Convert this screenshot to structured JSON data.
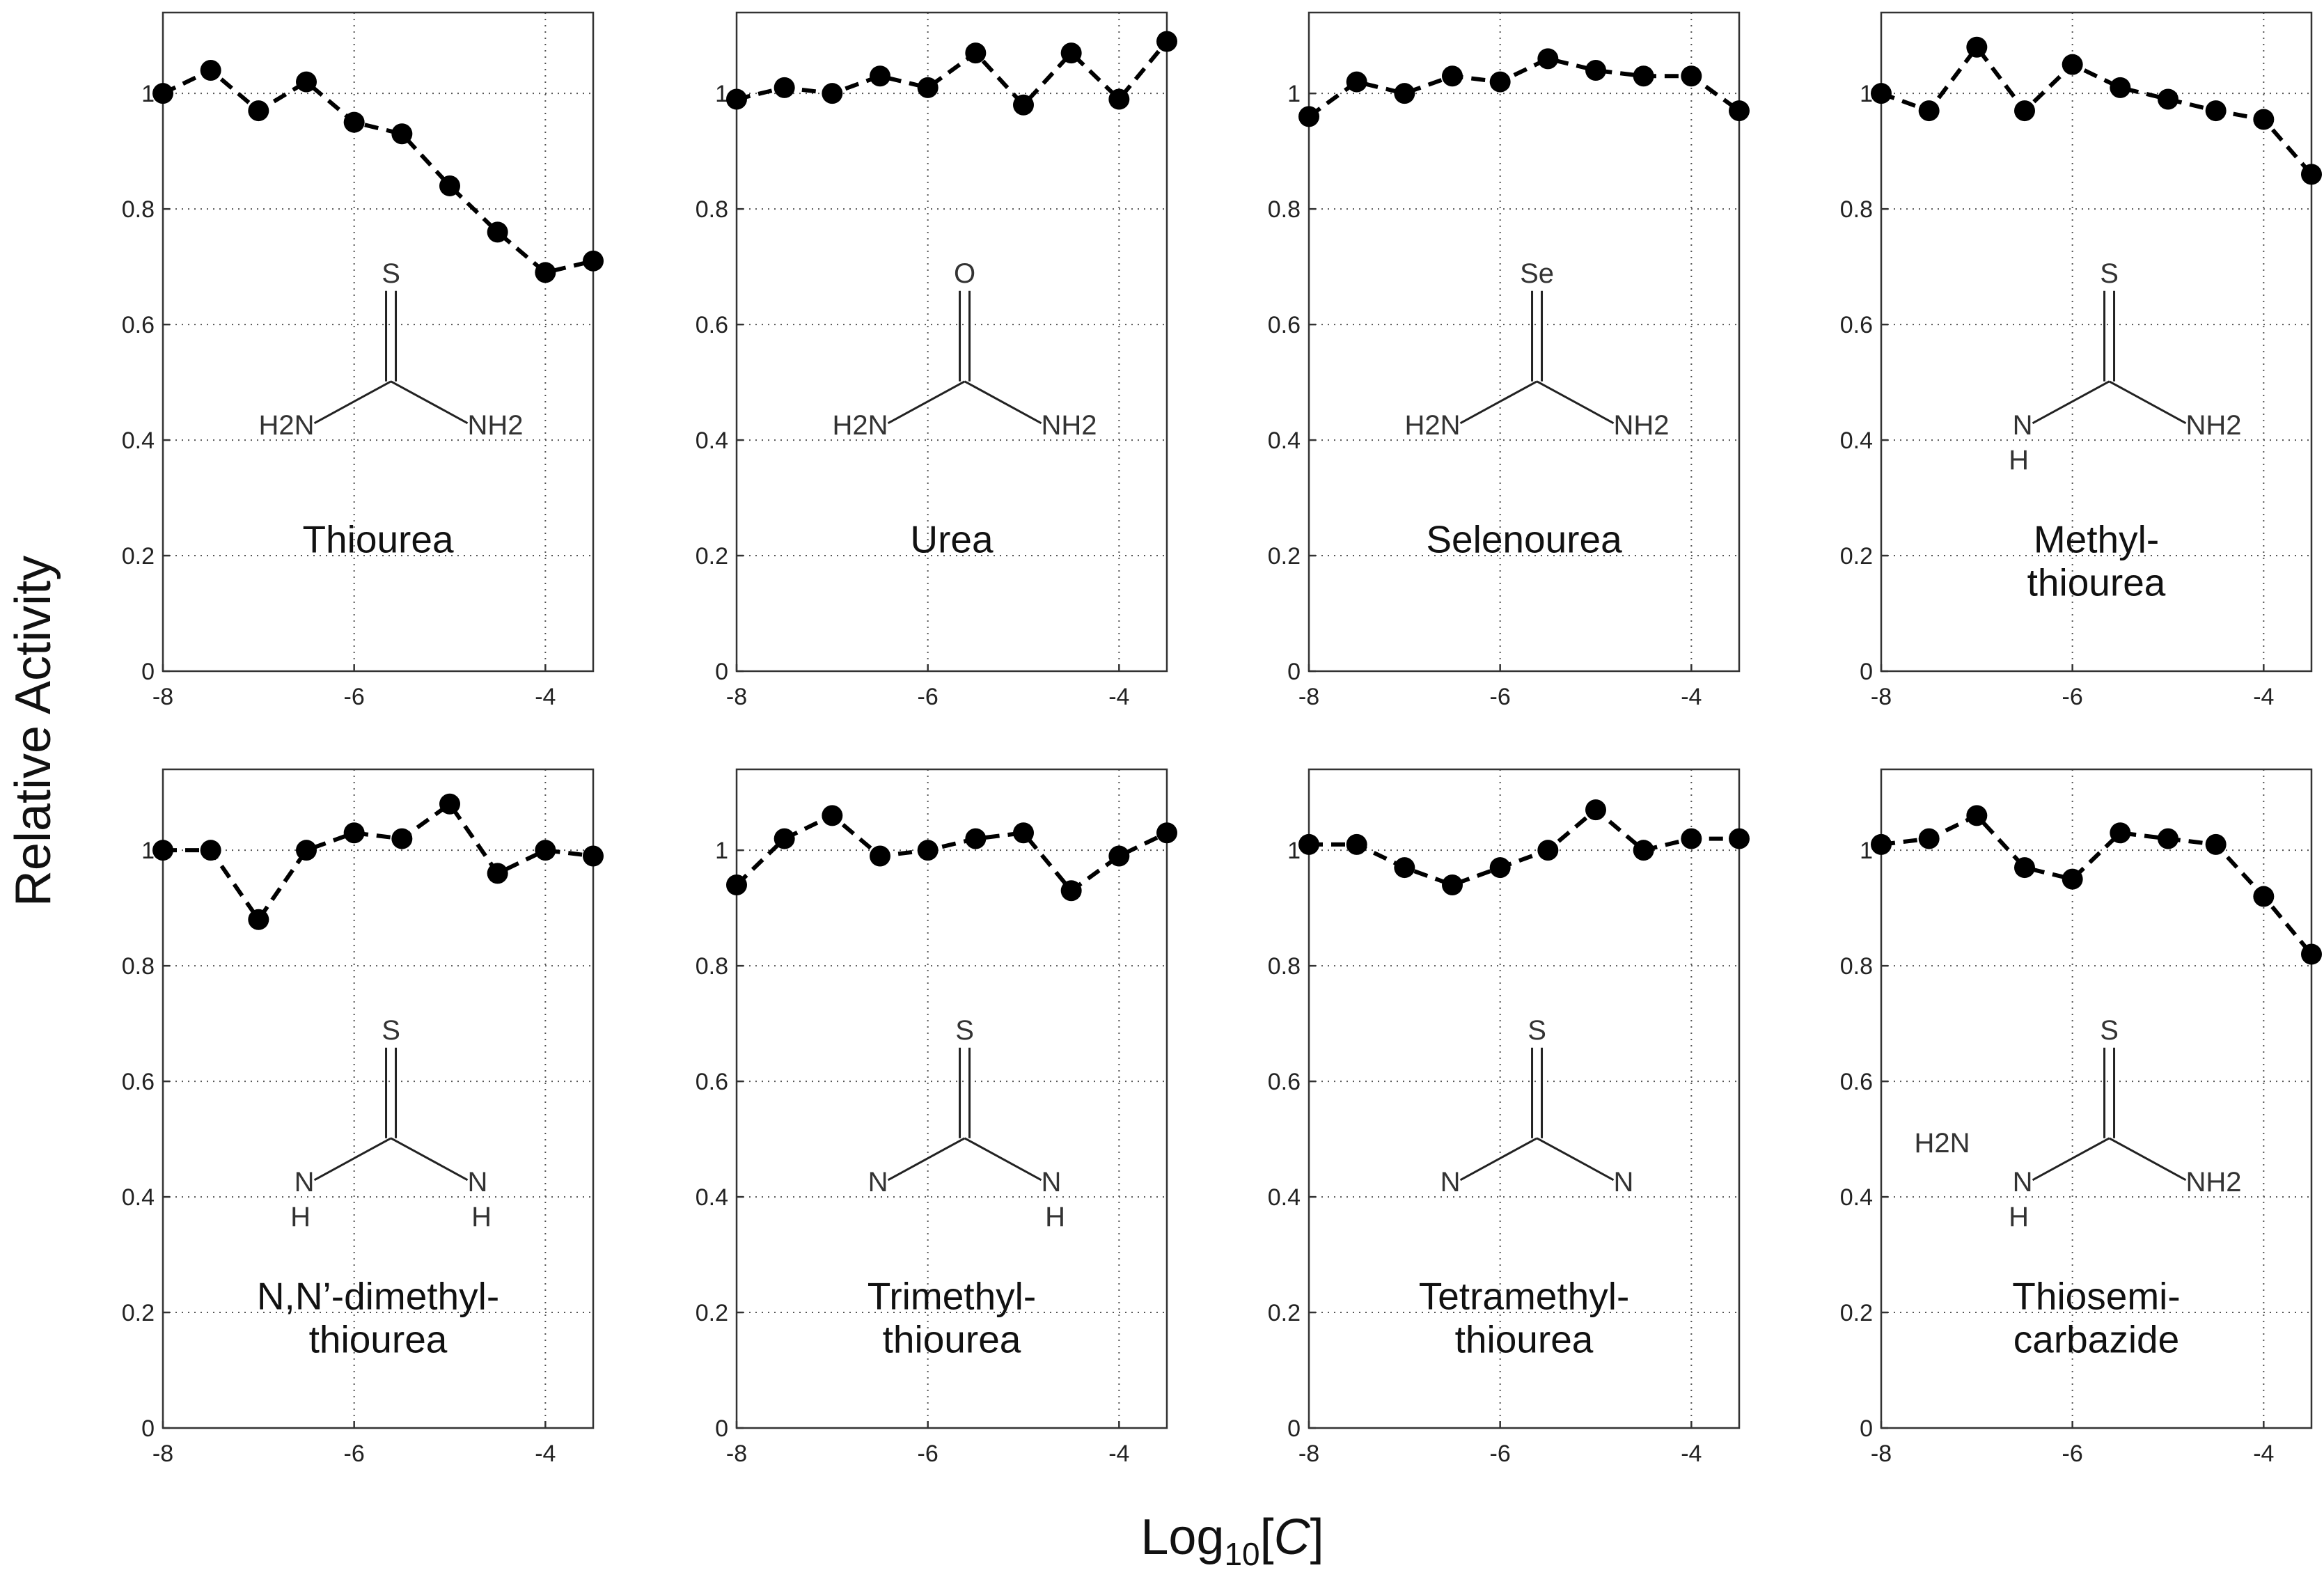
{
  "figure": {
    "ylabel": "Relative  Activity",
    "xlabel_main": "Log",
    "xlabel_sub": "10",
    "xlabel_bracket_open": "[",
    "xlabel_var": "C",
    "xlabel_bracket_close": "]"
  },
  "chart_data": [
    {
      "type": "line",
      "title": "Thiourea",
      "xlim": [
        -8,
        -3.5
      ],
      "ylim": [
        0,
        1.14
      ],
      "xticks": [
        "-8",
        "-6",
        "-4"
      ],
      "yticks": [
        "0",
        "0.2",
        "0.4",
        "0.6",
        "0.8",
        "1"
      ],
      "grid": true,
      "line_style": "dashed",
      "marker": "filled-circle",
      "series": [
        {
          "x": [
            -8,
            -7.5,
            -7,
            -6.5,
            -6,
            -5.5,
            -5,
            -4.5,
            -4,
            -3.5
          ],
          "values": [
            1.0,
            1.04,
            0.97,
            1.02,
            0.95,
            0.93,
            0.84,
            0.76,
            0.69,
            0.71
          ]
        }
      ],
      "structure": {
        "top": "S",
        "left": "H2N",
        "right": "NH2"
      }
    },
    {
      "type": "line",
      "title": "Urea",
      "xlim": [
        -8,
        -3.5
      ],
      "ylim": [
        0,
        1.14
      ],
      "xticks": [
        "-8",
        "-6",
        "-4"
      ],
      "yticks": [
        "0",
        "0.2",
        "0.4",
        "0.6",
        "0.8",
        "1"
      ],
      "grid": true,
      "line_style": "dashed",
      "marker": "filled-circle",
      "series": [
        {
          "x": [
            -8,
            -7.5,
            -7,
            -6.5,
            -6,
            -5.5,
            -5,
            -4.5,
            -4,
            -3.5
          ],
          "values": [
            0.99,
            1.01,
            1.0,
            1.03,
            1.01,
            1.07,
            0.98,
            1.07,
            0.99,
            1.09
          ]
        }
      ],
      "structure": {
        "top": "O",
        "left": "H2N",
        "right": "NH2"
      }
    },
    {
      "type": "line",
      "title": "Selenourea",
      "xlim": [
        -8,
        -3.5
      ],
      "ylim": [
        0,
        1.14
      ],
      "xticks": [
        "-8",
        "-6",
        "-4"
      ],
      "yticks": [
        "0",
        "0.2",
        "0.4",
        "0.6",
        "0.8",
        "1"
      ],
      "grid": true,
      "line_style": "dashed",
      "marker": "filled-circle",
      "series": [
        {
          "x": [
            -8,
            -7.5,
            -7,
            -6.5,
            -6,
            -5.5,
            -5,
            -4.5,
            -4,
            -3.5
          ],
          "values": [
            0.96,
            1.02,
            1.0,
            1.03,
            1.02,
            1.06,
            1.04,
            1.03,
            1.03,
            0.97
          ]
        }
      ],
      "structure": {
        "top": "Se",
        "left": "H2N",
        "right": "NH2"
      }
    },
    {
      "type": "line",
      "title": "Methyl-\nthiourea",
      "xlim": [
        -8,
        -3.5
      ],
      "ylim": [
        0,
        1.14
      ],
      "xticks": [
        "-8",
        "-6",
        "-4"
      ],
      "yticks": [
        "0",
        "0.2",
        "0.4",
        "0.6",
        "0.8",
        "1"
      ],
      "grid": true,
      "line_style": "dashed",
      "marker": "filled-circle",
      "series": [
        {
          "x": [
            -8,
            -7.5,
            -7,
            -6.5,
            -6,
            -5.5,
            -5,
            -4.5,
            -4,
            -3.5
          ],
          "values": [
            1.0,
            0.97,
            1.08,
            0.97,
            1.05,
            1.01,
            0.99,
            0.97,
            0.955,
            0.86
          ]
        }
      ],
      "structure": {
        "top": "S",
        "left": "N",
        "left_h": "H",
        "right": "NH2"
      }
    },
    {
      "type": "line",
      "title": "N,N’-dimethyl-\nthiourea",
      "xlim": [
        -8,
        -3.5
      ],
      "ylim": [
        0,
        1.14
      ],
      "xticks": [
        "-8",
        "-6",
        "-4"
      ],
      "yticks": [
        "0",
        "0.2",
        "0.4",
        "0.6",
        "0.8",
        "1"
      ],
      "grid": true,
      "line_style": "dashed",
      "marker": "filled-circle",
      "series": [
        {
          "x": [
            -8,
            -7.5,
            -7,
            -6.5,
            -6,
            -5.5,
            -5,
            -4.5,
            -4,
            -3.5
          ],
          "values": [
            1.0,
            1.0,
            0.88,
            1.0,
            1.03,
            1.02,
            1.08,
            0.96,
            1.0,
            0.99
          ]
        }
      ],
      "structure": {
        "top": "S",
        "left": "N",
        "left_h": "H",
        "right": "N",
        "right_h": "H"
      }
    },
    {
      "type": "line",
      "title": "Trimethyl-\nthiourea",
      "xlim": [
        -8,
        -3.5
      ],
      "ylim": [
        0,
        1.14
      ],
      "xticks": [
        "-8",
        "-6",
        "-4"
      ],
      "yticks": [
        "0",
        "0.2",
        "0.4",
        "0.6",
        "0.8",
        "1"
      ],
      "grid": true,
      "line_style": "dashed",
      "marker": "filled-circle",
      "series": [
        {
          "x": [
            -8,
            -7.5,
            -7,
            -6.5,
            -6,
            -5.5,
            -5,
            -4.5,
            -4,
            -3.5
          ],
          "values": [
            0.94,
            1.02,
            1.06,
            0.99,
            1.0,
            1.02,
            1.03,
            0.93,
            0.99,
            1.03
          ]
        }
      ],
      "structure": {
        "top": "S",
        "left": "N",
        "right": "N",
        "right_h": "H"
      }
    },
    {
      "type": "line",
      "title": "Tetramethyl-\nthiourea",
      "xlim": [
        -8,
        -3.5
      ],
      "ylim": [
        0,
        1.14
      ],
      "xticks": [
        "-8",
        "-6",
        "-4"
      ],
      "yticks": [
        "0",
        "0.2",
        "0.4",
        "0.6",
        "0.8",
        "1"
      ],
      "grid": true,
      "line_style": "dashed",
      "marker": "filled-circle",
      "series": [
        {
          "x": [
            -8,
            -7.5,
            -7,
            -6.5,
            -6,
            -5.5,
            -5,
            -4.5,
            -4,
            -3.5
          ],
          "values": [
            1.01,
            1.01,
            0.97,
            0.94,
            0.97,
            1.0,
            1.07,
            1.0,
            1.02,
            1.02
          ]
        }
      ],
      "structure": {
        "top": "S",
        "left": "N",
        "right": "N"
      }
    },
    {
      "type": "line",
      "title": "Thiosemi-\ncarbazide",
      "xlim": [
        -8,
        -3.5
      ],
      "ylim": [
        0,
        1.14
      ],
      "xticks": [
        "-8",
        "-6",
        "-4"
      ],
      "yticks": [
        "0",
        "0.2",
        "0.4",
        "0.6",
        "0.8",
        "1"
      ],
      "grid": true,
      "line_style": "dashed",
      "marker": "filled-circle",
      "series": [
        {
          "x": [
            -8,
            -7.5,
            -7,
            -6.5,
            -6,
            -5.5,
            -5,
            -4.5,
            -4,
            -3.5
          ],
          "values": [
            1.01,
            1.02,
            1.06,
            0.97,
            0.95,
            1.03,
            1.02,
            1.01,
            0.92,
            0.82
          ]
        }
      ],
      "structure": {
        "top": "S",
        "left": "N",
        "left_h": "H",
        "left_extra": "H2N",
        "right": "NH2"
      }
    }
  ]
}
